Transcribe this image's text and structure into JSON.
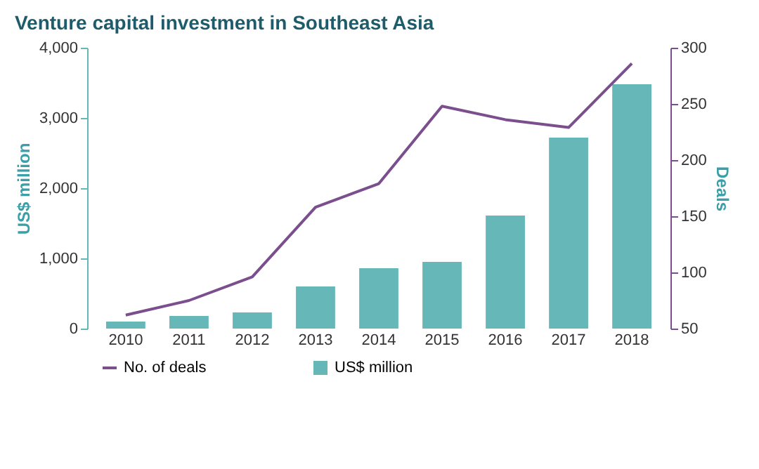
{
  "chart_data": {
    "type": "bar",
    "title": "Venture capital investment in Southeast Asia",
    "categories": [
      "2010",
      "2011",
      "2012",
      "2013",
      "2014",
      "2015",
      "2016",
      "2017",
      "2018"
    ],
    "series": [
      {
        "name": "US$ million",
        "type": "bar",
        "color": "#66b8b8",
        "values": [
          100,
          180,
          230,
          600,
          860,
          950,
          1610,
          2720,
          3480
        ]
      },
      {
        "name": "No. of deals",
        "type": "line",
        "axis": "y2",
        "color": "#7b4f8e",
        "values": [
          62,
          75,
          96,
          158,
          179,
          248,
          236,
          229,
          286
        ]
      }
    ],
    "ylabel": "US$ million",
    "y2label": "Deals",
    "ylim": [
      0,
      4000
    ],
    "yticks": [
      {
        "value": 0,
        "label": "0"
      },
      {
        "value": 1000,
        "label": "1,000"
      },
      {
        "value": 2000,
        "label": "2,000"
      },
      {
        "value": 3000,
        "label": "3,000"
      },
      {
        "value": 4000,
        "label": "4,000"
      }
    ],
    "y2lim": [
      50,
      300
    ],
    "y2ticks": [
      50,
      100,
      150,
      200,
      250,
      300
    ],
    "grid": false,
    "legend": "bottom left",
    "marker": "none",
    "line_style": "solid"
  }
}
